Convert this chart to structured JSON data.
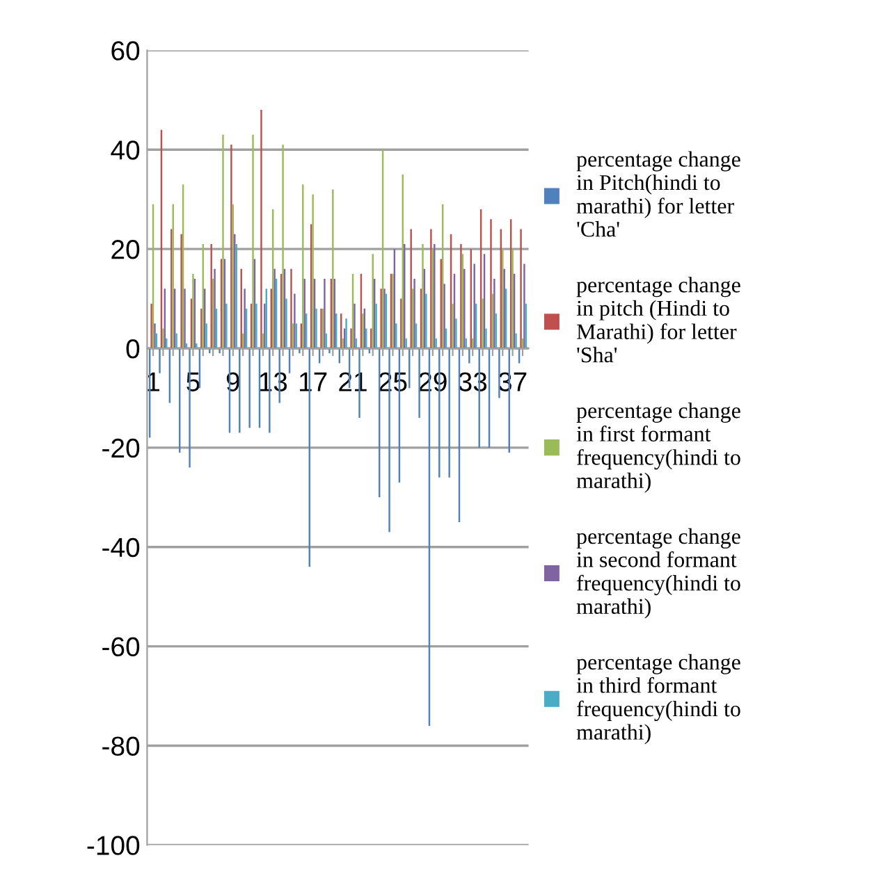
{
  "chart_data": {
    "type": "bar",
    "categories": [
      "1",
      null,
      null,
      null,
      "5",
      null,
      null,
      null,
      "9",
      null,
      null,
      null,
      "13",
      null,
      null,
      null,
      "17",
      null,
      null,
      null,
      "21",
      null,
      null,
      null,
      "25",
      null,
      null,
      null,
      "29",
      null,
      null,
      null,
      "33",
      null,
      null,
      null,
      "37",
      null
    ],
    "series": [
      {
        "name": "percentage change in Pitch(hindi to marathi) for letter 'Cha'",
        "color": "#4f81bd",
        "values": [
          -18,
          -5,
          -11,
          -21,
          -24,
          -8,
          -1,
          -1,
          -17,
          -17,
          -16,
          -16,
          -17,
          -11,
          -5,
          -1,
          -44,
          -3,
          -1,
          -3,
          -8,
          -14,
          -1,
          -30,
          -37,
          -27,
          -8,
          -14,
          -76,
          -26,
          -26,
          -35,
          -3,
          -20,
          -20,
          -10,
          -21,
          -3
        ]
      },
      {
        "name": "percentage change in pitch (Hindi to Marathi) for letter 'Sha'",
        "color": "#c0504d",
        "values": [
          9,
          44,
          24,
          23,
          10,
          8,
          21,
          18,
          41,
          16,
          9,
          48,
          12,
          15,
          16,
          5,
          25,
          8,
          14,
          7,
          4,
          15,
          4,
          12,
          15,
          10,
          24,
          12,
          24,
          18,
          23,
          21,
          20,
          28,
          26,
          24,
          26,
          24
        ]
      },
      {
        "name": "percentage change in first formant frequency(hindi to marathi)",
        "color": "#9bbb59",
        "values": [
          29,
          4,
          29,
          33,
          15,
          21,
          14,
          43,
          29,
          3,
          43,
          3,
          28,
          41,
          5,
          33,
          31,
          8,
          32,
          2,
          15,
          7,
          19,
          40,
          15,
          35,
          12,
          21,
          20,
          29,
          9,
          19,
          2,
          10,
          11,
          20,
          20,
          2
        ]
      },
      {
        "name": "percentage change in second formant frequency(hindi to marathi)",
        "color": "#8064a2",
        "values": [
          5,
          12,
          12,
          12,
          14,
          12,
          16,
          18,
          23,
          12,
          18,
          9,
          16,
          16,
          11,
          14,
          14,
          14,
          14,
          4,
          9,
          8,
          14,
          12,
          20,
          21,
          14,
          16,
          21,
          13,
          15,
          16,
          17,
          19,
          14,
          16,
          15,
          17
        ]
      },
      {
        "name": "percentage change in third formant frequency(hindi to marathi)",
        "color": "#4bacc6",
        "values": [
          3,
          2,
          3,
          1,
          1,
          5,
          8,
          9,
          21,
          8,
          9,
          12,
          14,
          10,
          5,
          7,
          8,
          3,
          7,
          6,
          2,
          4,
          9,
          11,
          5,
          2,
          5,
          11,
          2,
          4,
          6,
          2,
          9,
          4,
          7,
          12,
          3,
          9
        ]
      }
    ],
    "ylim": [
      -100,
      60
    ],
    "yticks": [
      -100,
      -80,
      -60,
      -40,
      -20,
      0,
      20,
      40,
      60
    ],
    "grid": "y",
    "legend": "right"
  }
}
